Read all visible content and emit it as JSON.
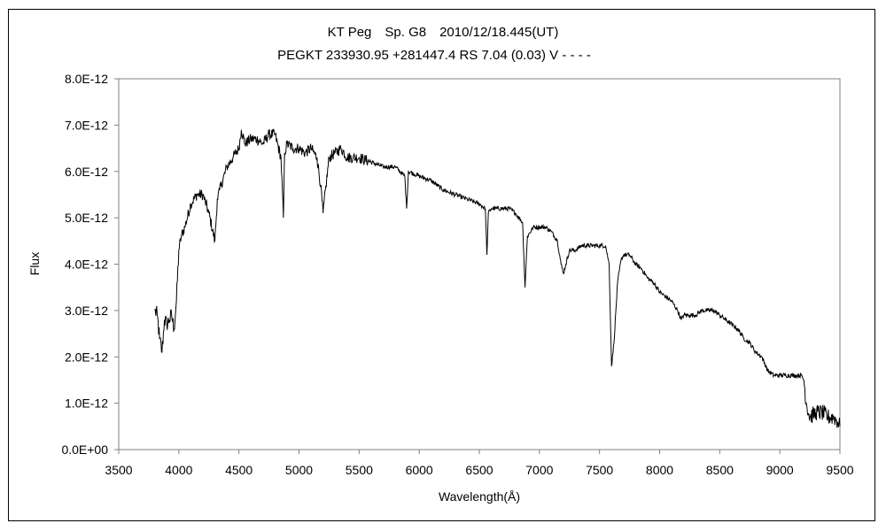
{
  "chart_data": {
    "type": "line",
    "title": "KT Peg　Sp. G8　2010/12/18.445(UT)",
    "subtitle": "PEGKT 233930.95 +281447.4 RS 7.04 (0.03) V - - - -",
    "xlabel": "Wavelength(Å)",
    "ylabel": "Flux",
    "xlim": [
      3500,
      9500
    ],
    "ylim": [
      0,
      8e-12
    ],
    "grid": false,
    "legend": "none",
    "x_ticks": [
      "3500",
      "4000",
      "4500",
      "5000",
      "5500",
      "6000",
      "6500",
      "7000",
      "7500",
      "8000",
      "8500",
      "9000",
      "9500"
    ],
    "y_ticks": [
      "0.0E+00",
      "1.0E-12",
      "2.0E-12",
      "3.0E-12",
      "4.0E-12",
      "5.0E-12",
      "6.0E-12",
      "7.0E-12",
      "8.0E-12"
    ],
    "line_color": "#000000",
    "series": [
      {
        "x": [
          3800,
          3820,
          3840,
          3860,
          3880,
          3900,
          3920,
          3940,
          3960,
          3980,
          4000,
          4020,
          4050,
          4100,
          4150,
          4200,
          4250,
          4300,
          4320,
          4340,
          4400,
          4450,
          4500,
          4520,
          4550,
          4600,
          4650,
          4700,
          4750,
          4800,
          4850,
          4870,
          4880,
          4900,
          4950,
          5000,
          5050,
          5100,
          5150,
          5180,
          5200,
          5250,
          5300,
          5350,
          5400,
          5450,
          5500,
          5600,
          5700,
          5800,
          5880,
          5895,
          5910,
          6000,
          6100,
          6200,
          6300,
          6400,
          6500,
          6550,
          6563,
          6575,
          6600,
          6650,
          6700,
          6750,
          6800,
          6860,
          6870,
          6880,
          6900,
          6950,
          7000,
          7050,
          7100,
          7150,
          7180,
          7200,
          7220,
          7250,
          7300,
          7350,
          7400,
          7450,
          7500,
          7550,
          7580,
          7600,
          7620,
          7650,
          7680,
          7700,
          7750,
          7800,
          7850,
          7900,
          7950,
          8000,
          8050,
          8100,
          8150,
          8180,
          8200,
          8250,
          8300,
          8350,
          8400,
          8450,
          8500,
          8550,
          8600,
          8650,
          8700,
          8750,
          8800,
          8850,
          8900,
          8950,
          9000,
          9050,
          9100,
          9150,
          9180,
          9200,
          9220,
          9250,
          9300,
          9350,
          9400,
          9450,
          9480,
          9500
        ],
        "y": [
          3.0,
          2.9,
          2.4,
          2.1,
          2.8,
          2.7,
          2.8,
          2.9,
          2.6,
          3.2,
          4.3,
          4.6,
          4.8,
          5.3,
          5.5,
          5.5,
          5.1,
          4.5,
          5.4,
          5.6,
          6.1,
          6.3,
          6.5,
          6.9,
          6.6,
          6.7,
          6.7,
          6.6,
          6.8,
          6.8,
          6.3,
          5.0,
          6.4,
          6.6,
          6.5,
          6.5,
          6.4,
          6.5,
          6.3,
          5.7,
          5.1,
          6.3,
          6.4,
          6.5,
          6.3,
          6.3,
          6.3,
          6.2,
          6.1,
          6.1,
          5.9,
          5.2,
          6.0,
          5.9,
          5.8,
          5.6,
          5.5,
          5.4,
          5.3,
          5.2,
          4.2,
          5.1,
          5.2,
          5.2,
          5.2,
          5.2,
          5.1,
          4.9,
          4.2,
          3.5,
          4.6,
          4.8,
          4.8,
          4.8,
          4.7,
          4.5,
          4.0,
          3.8,
          4.0,
          4.3,
          4.3,
          4.4,
          4.4,
          4.4,
          4.4,
          4.4,
          4.0,
          1.8,
          2.3,
          3.6,
          4.1,
          4.2,
          4.2,
          4.0,
          3.9,
          3.7,
          3.6,
          3.4,
          3.3,
          3.2,
          3.0,
          2.8,
          2.9,
          2.9,
          2.9,
          3.0,
          3.0,
          3.0,
          2.9,
          2.8,
          2.7,
          2.6,
          2.4,
          2.3,
          2.1,
          2.0,
          1.7,
          1.6,
          1.6,
          1.6,
          1.6,
          1.6,
          1.6,
          1.5,
          1.0,
          0.7,
          0.8,
          0.8,
          0.7,
          0.7,
          0.6,
          0.5
        ]
      }
    ]
  }
}
